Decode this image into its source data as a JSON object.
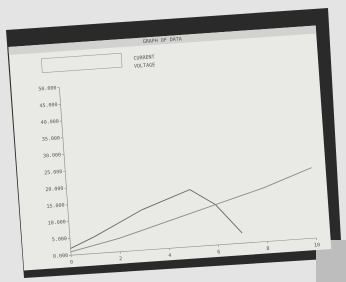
{
  "chart_data": {
    "type": "line",
    "title": "GRAPH OF DATA",
    "x": [
      0,
      1,
      2,
      3,
      4,
      5,
      6,
      7,
      8,
      9,
      10
    ],
    "xlim": [
      0,
      10
    ],
    "xticks": [
      0,
      2,
      4,
      6,
      8,
      10
    ],
    "ylim": [
      0,
      50
    ],
    "yticks": [
      {
        "value": 0,
        "label": "0.000"
      },
      {
        "value": 5,
        "label": "5.000"
      },
      {
        "value": 10,
        "label": "10.000"
      },
      {
        "value": 15,
        "label": "15.000"
      },
      {
        "value": 20,
        "label": "20.000"
      },
      {
        "value": 25,
        "label": "25.000"
      },
      {
        "value": 30,
        "label": "30.000"
      },
      {
        "value": 35,
        "label": "35.000"
      },
      {
        "value": 40,
        "label": "40.000"
      },
      {
        "value": 45,
        "label": "45.000"
      },
      {
        "value": 50,
        "label": "50.000"
      }
    ],
    "series": [
      {
        "name": "CURRENT",
        "color": "#6a6a6a",
        "values": [
          2,
          5,
          8.5,
          12,
          14.5,
          17,
          12,
          3,
          null,
          null,
          null
        ]
      },
      {
        "name": "VOLTAGE",
        "color": "#8a8a8a",
        "values": [
          1,
          2.5,
          4,
          6,
          8,
          10,
          12,
          14,
          16,
          18.5,
          21
        ]
      }
    ]
  }
}
